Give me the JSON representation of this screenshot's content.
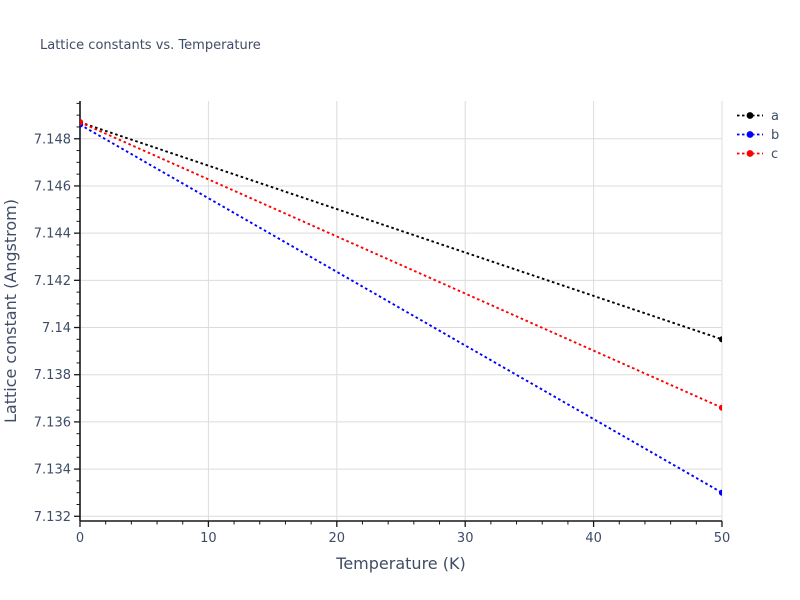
{
  "chart_data": {
    "type": "line",
    "title": "Lattice constants vs. Temperature",
    "xlabel": "Temperature (K)",
    "ylabel": "Lattice constant (Angstrom)",
    "xlim": [
      0,
      50
    ],
    "ylim": [
      7.1318,
      7.1496
    ],
    "x_major_ticks": [
      0,
      10,
      20,
      30,
      40,
      50
    ],
    "x_tick_labels": [
      "0",
      "10",
      "20",
      "30",
      "40",
      "50"
    ],
    "x_minor_step": 2,
    "y_major_ticks": [
      7.132,
      7.134,
      7.136,
      7.138,
      7.14,
      7.142,
      7.144,
      7.146,
      7.148
    ],
    "y_tick_labels": [
      "7.132",
      "7.134",
      "7.136",
      "7.138",
      "7.14",
      "7.142",
      "7.144",
      "7.146",
      "7.148"
    ],
    "y_minor_step": 0.0005,
    "grid": true,
    "legend_position": "upper right, outside plot",
    "series": [
      {
        "name": "a",
        "color": "#000000",
        "linestyle": "dotted",
        "marker": "circle",
        "x": [
          0,
          50
        ],
        "y": [
          7.1487,
          7.1395
        ]
      },
      {
        "name": "b",
        "color": "#0000ff",
        "linestyle": "dotted",
        "marker": "circle",
        "x": [
          0,
          50
        ],
        "y": [
          7.1486,
          7.133
        ]
      },
      {
        "name": "c",
        "color": "#ff0000",
        "linestyle": "dotted",
        "marker": "circle",
        "x": [
          0,
          50
        ],
        "y": [
          7.1487,
          7.1366
        ]
      }
    ],
    "colors": {
      "text": "#3e4c66",
      "grid": "#dcdcdc",
      "spine": "#15191c",
      "background": "#ffffff"
    }
  }
}
